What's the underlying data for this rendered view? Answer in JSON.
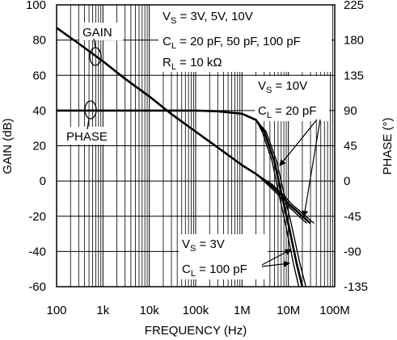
{
  "chart_data": {
    "type": "line",
    "xlabel": "FREQUENCY (Hz)",
    "ylabel_left": "GAIN (dB)",
    "ylabel_right": "PHASE (°)",
    "x_scale": "log",
    "xlim": [
      100,
      100000000
    ],
    "ylim_left": [
      -60,
      100
    ],
    "ylim_right": [
      -135,
      225
    ],
    "grid": true,
    "x_ticks": [
      {
        "value": 100,
        "label": "100"
      },
      {
        "value": 1000,
        "label": "1k"
      },
      {
        "value": 10000,
        "label": "10k"
      },
      {
        "value": 100000,
        "label": "100k"
      },
      {
        "value": 1000000,
        "label": "1M"
      },
      {
        "value": 10000000,
        "label": "10M"
      },
      {
        "value": 100000000,
        "label": "100M"
      }
    ],
    "y_ticks_left": [
      100,
      80,
      60,
      40,
      20,
      0,
      -20,
      -40,
      -60
    ],
    "y_ticks_right": [
      225,
      180,
      135,
      90,
      45,
      0,
      -45,
      -90,
      -135
    ],
    "annotations": {
      "box": {
        "line1": {
          "main": "V",
          "sub": "S",
          "rest": " = 3V, 5V, 10V"
        },
        "line2": {
          "main": "C",
          "sub": "L",
          "rest": " = 20 pF, 50 pF, 100 pF"
        },
        "line3": {
          "main": "R",
          "sub": "L",
          "rest": " = 10 kΩ"
        }
      },
      "upper_vs": {
        "main": "V",
        "sub": "S",
        "rest": " = 10V"
      },
      "upper_cl": {
        "main": "C",
        "sub": "L",
        "rest": " = 20 pF"
      },
      "lower_vs": {
        "main": "V",
        "sub": "S",
        "rest": " = 3V"
      },
      "lower_cl": {
        "main": "C",
        "sub": "L",
        "rest": " = 100 pF"
      },
      "gain_label": "GAIN",
      "phase_label": "PHASE"
    },
    "series": [
      {
        "name": "GAIN",
        "axis": "left",
        "x": [
          100,
          300,
          1000,
          3000,
          10000,
          30000,
          100000,
          300000,
          1000000,
          2000000,
          4000000,
          7000000,
          10000000,
          15000000,
          20000000,
          30000000
        ],
        "y": [
          87,
          78,
          68,
          58,
          48,
          38,
          28,
          19,
          9,
          4,
          -2,
          -8,
          -13,
          -17,
          -20,
          -24
        ]
      },
      {
        "name": "PHASE",
        "axis": "right",
        "x": [
          100,
          10000,
          100000,
          300000,
          1000000,
          2000000,
          3000000,
          5000000,
          7000000,
          10000000,
          15000000,
          20000000
        ],
        "y": [
          90,
          90,
          90,
          89,
          86,
          78,
          63,
          25,
          -15,
          -55,
          -105,
          -135
        ]
      }
    ]
  }
}
